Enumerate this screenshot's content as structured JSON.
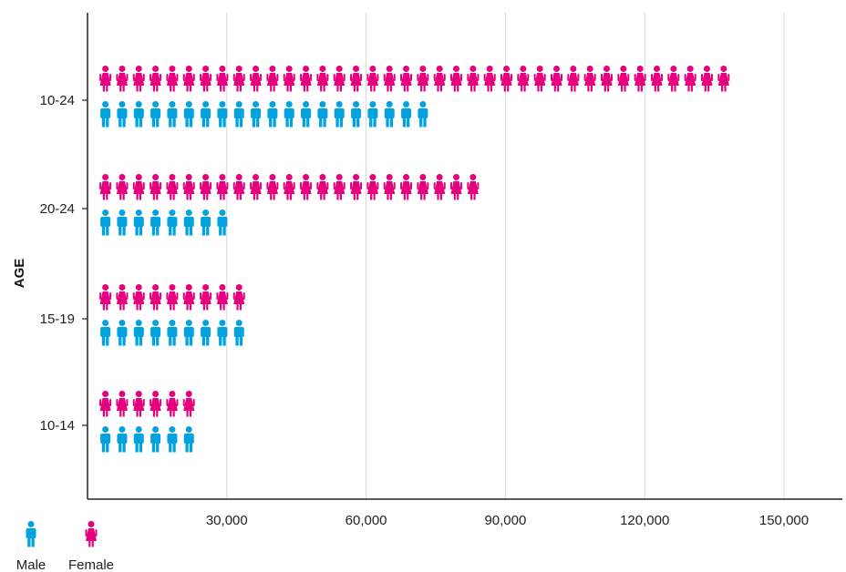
{
  "chart_data": {
    "type": "bar",
    "subtype": "pictograph",
    "orientation": "horizontal",
    "ylabel": "AGE",
    "xlabel": "",
    "categories": [
      "10-24",
      "20-24",
      "15-19",
      "10-14"
    ],
    "series": [
      {
        "name": "Female",
        "color": "#e6007e",
        "icon": "female-person-icon",
        "values": [
          137000,
          84000,
          33000,
          22000
        ]
      },
      {
        "name": "Male",
        "color": "#00a3e0",
        "icon": "male-person-icon",
        "values": [
          72000,
          27000,
          33000,
          22000
        ]
      }
    ],
    "xlim": [
      0,
      170000
    ],
    "xticks": [
      30000,
      60000,
      90000,
      120000,
      150000
    ],
    "xtick_labels": [
      "30,000",
      "60,000",
      "90,000",
      "120,000",
      "150,000"
    ],
    "grid": "vertical",
    "legend": {
      "placement": "bottom-left",
      "items": [
        "Male",
        "Female"
      ]
    }
  }
}
